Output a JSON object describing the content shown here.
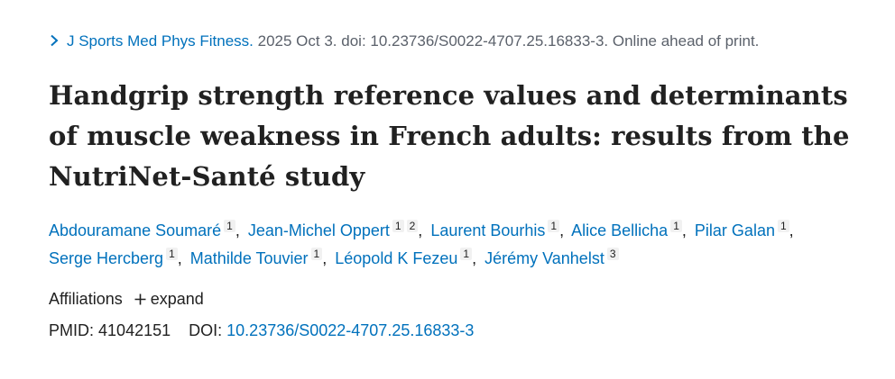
{
  "citation": {
    "journal": "J Sports Med Phys Fitness.",
    "details": "2025 Oct 3. doi: 10.23736/S0022-4707.25.16833-3. Online ahead of print."
  },
  "title": "Handgrip strength reference values and determinants of muscle weakness in French adults: results from the NutriNet-Santé study",
  "authors": [
    {
      "name": "Abdouramane Soumaré",
      "affiliations": [
        "1"
      ]
    },
    {
      "name": "Jean-Michel Oppert",
      "affiliations": [
        "1",
        "2"
      ]
    },
    {
      "name": "Laurent Bourhis",
      "affiliations": [
        "1"
      ]
    },
    {
      "name": "Alice Bellicha",
      "affiliations": [
        "1"
      ]
    },
    {
      "name": "Pilar Galan",
      "affiliations": [
        "1"
      ]
    },
    {
      "name": "Serge Hercberg",
      "affiliations": [
        "1"
      ]
    },
    {
      "name": "Mathilde Touvier",
      "affiliations": [
        "1"
      ]
    },
    {
      "name": "Léopold K Fezeu",
      "affiliations": [
        "1"
      ]
    },
    {
      "name": "Jérémy Vanhelst",
      "affiliations": [
        "3"
      ]
    }
  ],
  "affiliations": {
    "label": "Affiliations",
    "toggle_label": "expand",
    "toggle_icon": "plus-icon"
  },
  "identifiers": {
    "pmid_label": "PMID:",
    "pmid": "41042151",
    "doi_label": "DOI:",
    "doi": "10.23736/S0022-4707.25.16833-3"
  },
  "colors": {
    "link": "#0071bc",
    "text": "#212121",
    "muted": "#5b616b"
  }
}
